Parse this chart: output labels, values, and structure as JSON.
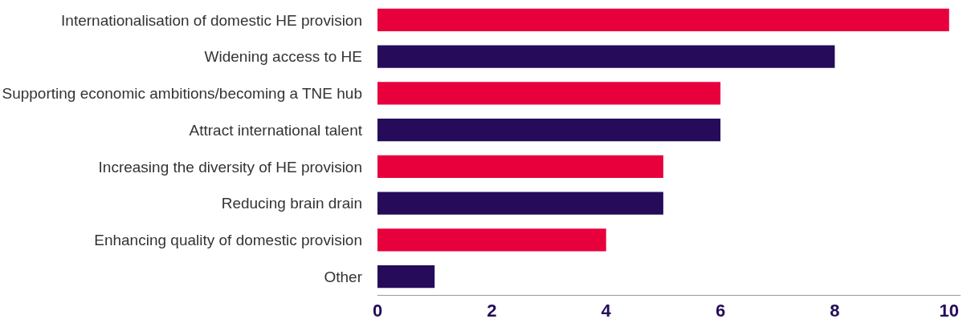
{
  "chart_data": {
    "type": "bar",
    "orientation": "horizontal",
    "categories": [
      "Internationalisation of domestic HE provision",
      "Widening access to HE",
      "Supporting economic ambitions/becoming a TNE hub",
      "Attract international talent",
      "Increasing the diversity of HE provision",
      "Reducing brain drain",
      "Enhancing quality of domestic provision",
      "Other"
    ],
    "values": [
      10,
      8,
      6,
      6,
      5,
      5,
      4,
      1
    ],
    "colors": [
      "#e8003d",
      "#250b5a",
      "#e8003d",
      "#250b5a",
      "#e8003d",
      "#250b5a",
      "#e8003d",
      "#250b5a"
    ],
    "xlim": [
      0,
      10.2
    ],
    "xticks": [
      0,
      2,
      4,
      6,
      8,
      10
    ]
  }
}
